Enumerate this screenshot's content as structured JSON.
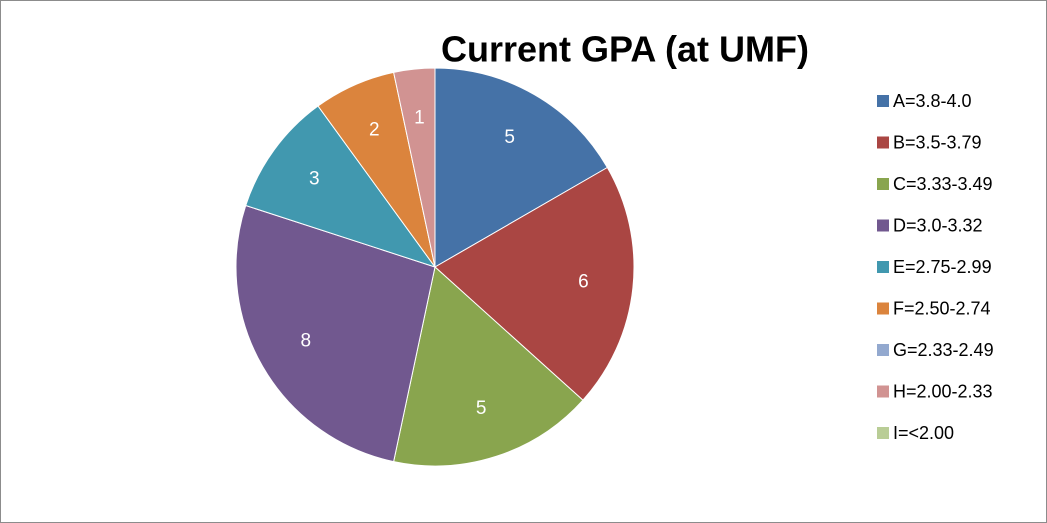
{
  "chart_data": {
    "type": "pie",
    "title": "Current GPA (at UMF)",
    "categories": [
      "A=3.8-4.0",
      "B=3.5-3.79",
      "C=3.33-3.49",
      "D=3.0-3.32",
      "E=2.75-2.99",
      "F=2.50-2.74",
      "G=2.33-2.49",
      "H=2.00-2.33",
      "I=<2.00"
    ],
    "values": [
      5,
      6,
      5,
      8,
      3,
      2,
      0,
      1,
      0
    ],
    "colors": [
      "#4572a7",
      "#aa4643",
      "#89a54e",
      "#71588f",
      "#4198af",
      "#db843d",
      "#93a9cf",
      "#d19392",
      "#b9cd96"
    ],
    "legend": "right"
  }
}
